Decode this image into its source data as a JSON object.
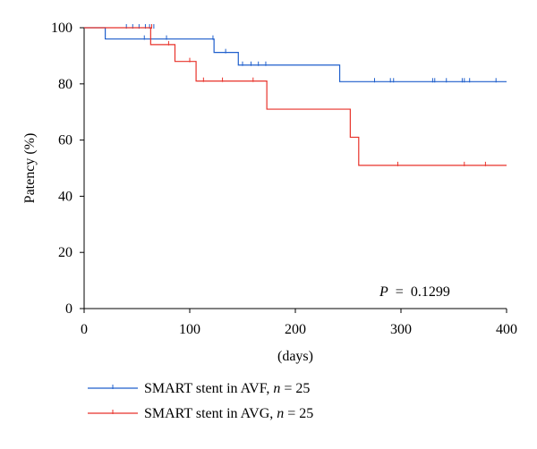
{
  "chart_data": {
    "type": "line",
    "xlabel": "(days)",
    "ylabel": "Patency (%)",
    "xlim": [
      0,
      400
    ],
    "ylim": [
      0,
      100
    ],
    "xticks": [
      0,
      100,
      200,
      300,
      400
    ],
    "yticks": [
      0,
      20,
      40,
      60,
      80,
      100
    ],
    "grid": false,
    "legend_position": "bottom-left",
    "annotation": {
      "label": "P",
      "operator": "=",
      "value": "0.1299"
    },
    "series": [
      {
        "name": "SMART stent in AVF, n = 25",
        "name_parts": {
          "text": "SMART stent in AVF, ",
          "n_label": "n",
          "n_value": "= 25"
        },
        "color": "#1f5fcc",
        "steps": [
          [
            0,
            100
          ],
          [
            20,
            96
          ],
          [
            123,
            91.2
          ],
          [
            146,
            86.7
          ],
          [
            242,
            80.8
          ],
          [
            400,
            80.8
          ]
        ],
        "censored": [
          [
            40,
            100
          ],
          [
            46,
            100
          ],
          [
            52,
            100
          ],
          [
            58,
            100
          ],
          [
            62,
            100
          ],
          [
            66,
            100
          ],
          [
            57,
            96
          ],
          [
            78,
            96
          ],
          [
            122,
            96
          ],
          [
            134,
            91.2
          ],
          [
            150,
            86.7
          ],
          [
            158,
            86.7
          ],
          [
            165,
            86.7
          ],
          [
            172,
            86.7
          ],
          [
            275,
            80.8
          ],
          [
            290,
            80.8
          ],
          [
            293,
            80.8
          ],
          [
            330,
            80.8
          ],
          [
            332,
            80.8
          ],
          [
            343,
            80.8
          ],
          [
            358,
            80.8
          ],
          [
            360,
            80.8
          ],
          [
            365,
            80.8
          ],
          [
            390,
            80.8
          ]
        ]
      },
      {
        "name": "SMART stent in AVG, n = 25",
        "name_parts": {
          "text": "SMART stent in AVG, ",
          "n_label": "n",
          "n_value": "= 25"
        },
        "color": "#e8322a",
        "steps": [
          [
            0,
            100
          ],
          [
            63,
            94
          ],
          [
            86,
            88
          ],
          [
            106,
            81
          ],
          [
            173,
            71
          ],
          [
            252,
            61
          ],
          [
            260,
            51
          ],
          [
            400,
            51
          ]
        ],
        "censored": [
          [
            64,
            100
          ],
          [
            80,
            94
          ],
          [
            100,
            88
          ],
          [
            113,
            81
          ],
          [
            131,
            81
          ],
          [
            160,
            81
          ],
          [
            297,
            51
          ],
          [
            360,
            51
          ],
          [
            380,
            51
          ]
        ]
      }
    ]
  }
}
